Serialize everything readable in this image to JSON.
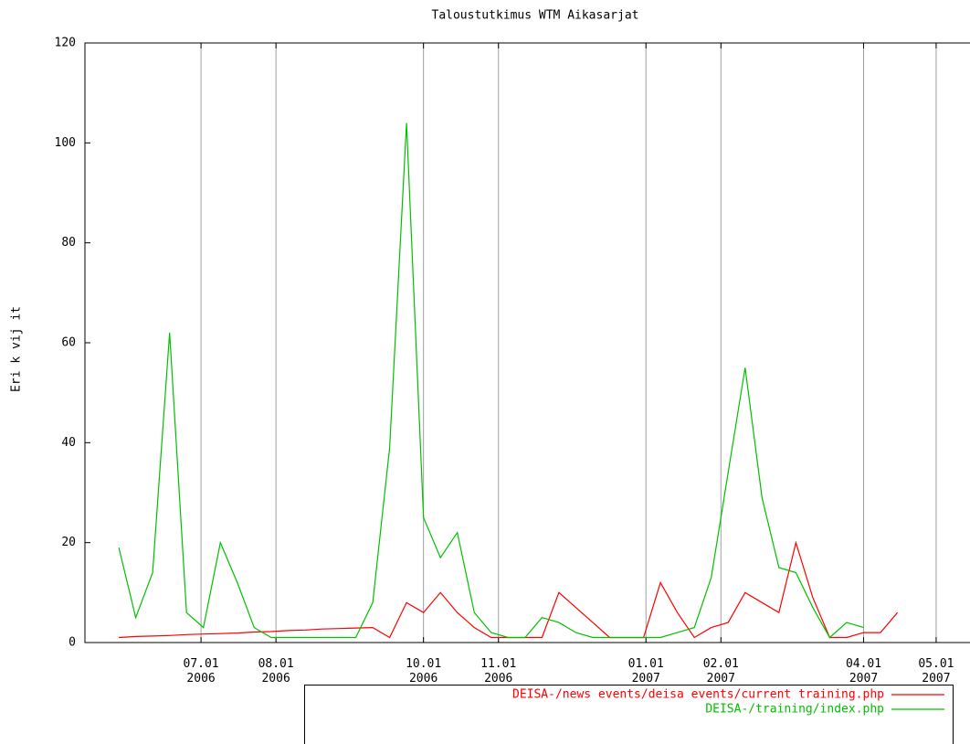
{
  "chart_data": {
    "type": "line",
    "title": "Taloustutkimus WTM Aikasarjat",
    "ylabel": "Eri k vij it",
    "x": [
      "2006-05-28",
      "2006-06-04",
      "2006-06-11",
      "2006-06-18",
      "2006-06-25",
      "2006-07-02",
      "2006-07-09",
      "2006-07-16",
      "2006-07-23",
      "2006-07-30",
      "2006-08-06",
      "2006-08-13",
      "2006-08-20",
      "2006-08-27",
      "2006-09-03",
      "2006-09-10",
      "2006-09-17",
      "2006-09-24",
      "2006-10-01",
      "2006-10-08",
      "2006-10-15",
      "2006-10-22",
      "2006-10-29",
      "2006-11-05",
      "2006-11-12",
      "2006-11-19",
      "2006-11-26",
      "2006-12-03",
      "2006-12-10",
      "2006-12-17",
      "2006-12-24",
      "2006-12-31",
      "2007-01-07",
      "2007-01-14",
      "2007-01-21",
      "2007-01-28",
      "2007-02-04",
      "2007-02-11",
      "2007-02-18",
      "2007-02-25",
      "2007-03-04",
      "2007-03-11",
      "2007-03-18",
      "2007-03-25",
      "2007-04-01",
      "2007-04-08",
      "2007-04-15"
    ],
    "series": [
      {
        "name": "DEISA-/news events/deisa events/current training.php",
        "color": "#ff0000",
        "values": [
          1,
          1.2,
          1.3,
          1.4,
          1.6,
          1.7,
          1.8,
          1.9,
          2.1,
          2.2,
          2.4,
          2.5,
          2.7,
          2.8,
          2.9,
          3,
          1,
          8,
          6,
          10,
          6,
          3,
          1,
          1,
          1,
          1,
          10,
          7,
          4,
          1,
          1,
          1,
          12,
          6,
          1,
          3,
          4,
          10,
          8,
          6,
          20,
          9,
          1,
          1,
          2,
          2,
          6
        ]
      },
      {
        "name": "DEISA-/training/index.php",
        "color": "#00c000",
        "values": [
          19,
          5,
          14,
          62,
          6,
          3,
          20,
          12,
          3,
          1,
          1,
          1,
          1,
          1,
          1,
          8,
          39,
          104,
          25,
          17,
          22,
          6,
          2,
          1,
          1,
          5,
          4,
          2,
          1,
          1,
          1,
          1,
          1,
          2,
          3,
          13,
          34,
          55,
          29,
          15,
          14,
          7,
          1,
          4,
          3,
          null,
          null
        ]
      }
    ],
    "xlim": [
      "2006-05-14",
      "2007-05-15"
    ],
    "xticks": [
      {
        "value": "2006-07-01",
        "label": "07.01\n2006"
      },
      {
        "value": "2006-08-01",
        "label": "08.01\n2006"
      },
      {
        "value": "2006-10-01",
        "label": "10.01\n2006"
      },
      {
        "value": "2006-11-01",
        "label": "11.01\n2006"
      },
      {
        "value": "2007-01-01",
        "label": "01.01\n2007"
      },
      {
        "value": "2007-02-01",
        "label": "02.01\n2007"
      },
      {
        "value": "2007-04-01",
        "label": "04.01\n2007"
      },
      {
        "value": "2007-05-01",
        "label": "05.01\n2007"
      }
    ],
    "ylim": [
      0,
      120
    ],
    "yticks": [
      0,
      20,
      40,
      60,
      80,
      100,
      120
    ],
    "grid": "x",
    "legend": "bottom"
  }
}
